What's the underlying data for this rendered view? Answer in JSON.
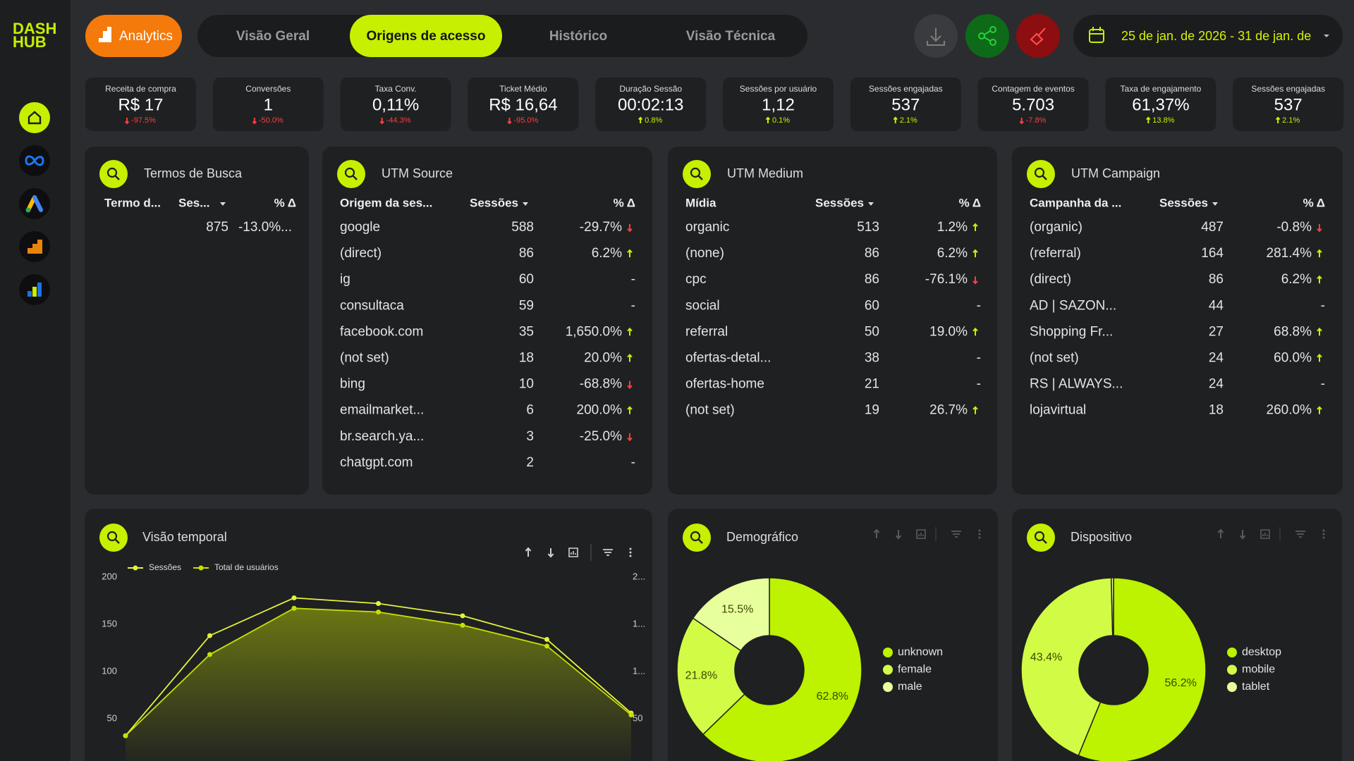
{
  "sidebar": {
    "logo": [
      "DASH",
      "HUB"
    ]
  },
  "header": {
    "analytics_button": "Analytics",
    "tabs": [
      "Visão Geral",
      "Origens de acesso",
      "Histórico",
      "Visão Técnica"
    ],
    "active_tab": 1,
    "date_range": "25 de jan. de 2026 - 31 de jan. de"
  },
  "kpis": [
    {
      "label": "Receita de compra",
      "value": "R$ 17",
      "delta": "-97.5%"
    },
    {
      "label": "Conversões",
      "value": "1",
      "delta": "-50.0%"
    },
    {
      "label": "Taxa Conv.",
      "value": "0,11%",
      "delta": "-44.3%"
    },
    {
      "label": "Ticket Médio",
      "value": "R$ 16,64",
      "delta": "-95.0%"
    },
    {
      "label": "Duração Sessão",
      "value": "00:02:13",
      "delta": "0.8%"
    },
    {
      "label": "Sessões por usuário",
      "value": "1,12",
      "delta": "0.1%"
    },
    {
      "label": "Sessões engajadas",
      "value": "537",
      "delta": "2.1%"
    },
    {
      "label": "Contagem de eventos",
      "value": "5.703",
      "delta": "-7.8%"
    },
    {
      "label": "Taxa de engajamento",
      "value": "61,37%",
      "delta": "13.8%"
    },
    {
      "label": "Sessões engajadas",
      "value": "537",
      "delta": "2.1%"
    }
  ],
  "tables": [
    {
      "title": "Termos de Busca",
      "columns": [
        "Termo d...",
        "Ses...",
        "% Δ"
      ],
      "rows": [
        [
          null,
          "875",
          "-13.0%..."
        ]
      ]
    },
    {
      "title": "UTM Source",
      "columns": [
        "Origem da ses...",
        "Sessões",
        "% Δ"
      ],
      "rows": [
        [
          "google",
          "588",
          "-29.7%"
        ],
        [
          "(direct)",
          "86",
          "6.2%"
        ],
        [
          "ig",
          "60",
          "-"
        ],
        [
          "consultaca",
          "59",
          "-"
        ],
        [
          "facebook.com",
          "35",
          "1,650.0%"
        ],
        [
          "(not set)",
          "18",
          "20.0%"
        ],
        [
          "bing",
          "10",
          "-68.8%"
        ],
        [
          "emailmarket...",
          "6",
          "200.0%"
        ],
        [
          "br.search.ya...",
          "3",
          "-25.0%"
        ],
        [
          "chatgpt.com",
          "2",
          "-"
        ]
      ]
    },
    {
      "title": "UTM Medium",
      "columns": [
        "Mídia",
        "Sessões",
        "% Δ"
      ],
      "rows": [
        [
          "organic",
          "513",
          "1.2%"
        ],
        [
          "(none)",
          "86",
          "6.2%"
        ],
        [
          "cpc",
          "86",
          "-76.1%"
        ],
        [
          "social",
          "60",
          "-"
        ],
        [
          "referral",
          "50",
          "19.0%"
        ],
        [
          "ofertas-detal...",
          "38",
          "-"
        ],
        [
          "ofertas-home",
          "21",
          "-"
        ],
        [
          "(not set)",
          "19",
          "26.7%"
        ]
      ]
    },
    {
      "title": "UTM Campaign",
      "columns": [
        "Campanha da ...",
        "Sessões",
        "% Δ"
      ],
      "rows": [
        [
          "(organic)",
          "487",
          "-0.8%"
        ],
        [
          "(referral)",
          "164",
          "281.4%"
        ],
        [
          "(direct)",
          "86",
          "6.2%"
        ],
        [
          "AD | SAZON...",
          "44",
          "-"
        ],
        [
          "Shopping Fr...",
          "27",
          "68.8%"
        ],
        [
          "(not set)",
          "24",
          "60.0%"
        ],
        [
          "RS | ALWAYS...",
          "24",
          "-"
        ],
        [
          "lojavirtual",
          "18",
          "260.0%"
        ]
      ]
    }
  ],
  "chart_data": [
    {
      "type": "line",
      "title": "Visão temporal",
      "categories": [
        null,
        null,
        null,
        null,
        null,
        null,
        null
      ],
      "series": [
        {
          "name": "Sessões",
          "color": "#e4f23c",
          "values": [
            32,
            138,
            178,
            172,
            159,
            134,
            56
          ]
        },
        {
          "name": "Total de usuários",
          "color": "#c8e000",
          "values": [
            32,
            118,
            167,
            163,
            149,
            127,
            54
          ],
          "axis": "y2",
          "area": true
        }
      ],
      "ylim": [
        0,
        200
      ],
      "yticks": [
        50,
        100,
        150,
        200
      ],
      "y2lim": [
        0,
        200
      ],
      "y2ticks": [
        50,
        {
          "value": 100,
          "label": "1..."
        },
        {
          "value": 150,
          "label": "1..."
        },
        {
          "value": 200,
          "label": "2..."
        }
      ]
    },
    {
      "type": "pie",
      "title": "Demográfico",
      "categories": [
        "unknown",
        "female",
        "male"
      ],
      "values": [
        62.8,
        21.8,
        15.5
      ],
      "value_labels": [
        "62.8%",
        "21.8%",
        "15.5%"
      ],
      "colors": [
        "#bdf200",
        "#d2fb45",
        "#e8ff9e"
      ]
    },
    {
      "type": "pie",
      "title": "Dispositivo",
      "categories": [
        "desktop",
        "mobile",
        "tablet"
      ],
      "values": [
        56.2,
        43.4,
        0.4
      ],
      "value_labels": [
        "56.2%",
        "43.4%",
        null
      ],
      "colors": [
        "#bdf200",
        "#d2fb45",
        "#e8ff9e"
      ]
    }
  ]
}
